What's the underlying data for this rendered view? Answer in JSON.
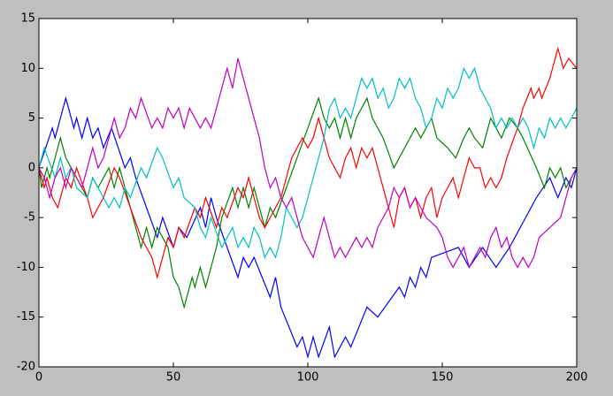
{
  "chart_data": {
    "type": "line",
    "xlim": [
      0,
      200
    ],
    "xticks": [
      0,
      50,
      100,
      150,
      200
    ],
    "ylim": [
      -20,
      15
    ],
    "yticks": [
      -20,
      -15,
      -10,
      -5,
      0,
      5,
      10,
      15
    ],
    "series": [
      {
        "color": "#0000ff",
        "x": [
          0,
          5,
          6,
          10,
          13,
          14,
          16,
          18,
          20,
          22,
          24,
          27,
          32,
          34,
          36,
          44,
          46,
          50,
          52,
          55,
          60,
          62,
          64,
          66,
          74,
          76,
          78,
          80,
          86,
          88,
          90,
          96,
          98,
          100,
          102,
          104,
          108,
          110,
          114,
          116,
          122,
          126,
          134,
          136,
          138,
          140,
          142,
          144,
          146,
          156,
          160,
          165,
          170,
          175,
          185,
          190,
          193,
          196,
          198,
          200
        ],
        "values": [
          0,
          4,
          3,
          7,
          4,
          5,
          3,
          5,
          3,
          4,
          2,
          4,
          0,
          1,
          -1,
          -7,
          -5,
          -8,
          -6,
          -7,
          -4,
          -6,
          -3,
          -5,
          -11,
          -9,
          -10,
          -9,
          -13,
          -11,
          -14,
          -18,
          -17,
          -19,
          -17,
          -19,
          -16,
          -19,
          -17,
          -18,
          -14,
          -15,
          -12,
          -13,
          -11,
          -12,
          -10,
          -11,
          -9,
          -8,
          -10,
          -8,
          -10,
          -8,
          -3,
          -1,
          -3,
          -1,
          -2,
          0
        ]
      },
      {
        "color": "#008000",
        "x": [
          0,
          1,
          3,
          4,
          8,
          10,
          14,
          18,
          20,
          22,
          26,
          28,
          30,
          32,
          36,
          38,
          40,
          42,
          44,
          48,
          50,
          52,
          54,
          57,
          58,
          60,
          62,
          66,
          68,
          72,
          74,
          76,
          78,
          80,
          82,
          84,
          86,
          88,
          92,
          96,
          100,
          104,
          106,
          108,
          110,
          112,
          114,
          116,
          118,
          122,
          124,
          128,
          132,
          134,
          138,
          140,
          142,
          146,
          148,
          152,
          155,
          158,
          160,
          162,
          165,
          168,
          172,
          175,
          178,
          180,
          185,
          188,
          190,
          192,
          194,
          196,
          200
        ],
        "values": [
          0,
          -2,
          0,
          -1,
          3,
          1,
          -1,
          -3,
          -1,
          -2,
          0,
          -2,
          0,
          -2,
          -6,
          -8,
          -6,
          -8,
          -6,
          -8,
          -11,
          -12,
          -14,
          -11,
          -12,
          -10,
          -12,
          -8,
          -5,
          -2,
          -4,
          -2,
          -4,
          -2,
          -4,
          -6,
          -4,
          -5,
          -2,
          1,
          4,
          7,
          5,
          4,
          5,
          3,
          5,
          3,
          5,
          7,
          5,
          3,
          0,
          1,
          3,
          4,
          3,
          5,
          3,
          2,
          1,
          3,
          4,
          3,
          2,
          5,
          3,
          5,
          4,
          3,
          0,
          -2,
          0,
          -1,
          0,
          -2,
          0
        ]
      },
      {
        "color": "#ff0000",
        "x": [
          0,
          2,
          3,
          5,
          7,
          10,
          12,
          14,
          18,
          20,
          22,
          24,
          28,
          30,
          34,
          38,
          42,
          44,
          48,
          50,
          52,
          54,
          58,
          60,
          62,
          66,
          68,
          70,
          74,
          76,
          78,
          80,
          82,
          84,
          88,
          90,
          92,
          94,
          96,
          98,
          100,
          102,
          104,
          106,
          108,
          110,
          112,
          114,
          116,
          118,
          120,
          122,
          124,
          126,
          128,
          130,
          132,
          134,
          136,
          138,
          140,
          142,
          144,
          146,
          148,
          150,
          152,
          154,
          156,
          158,
          160,
          162,
          164,
          166,
          168,
          170,
          172,
          174,
          178,
          180,
          183,
          184,
          186,
          187,
          190,
          193,
          195,
          197,
          200
        ],
        "values": [
          0,
          -2,
          -1,
          -3,
          -4,
          -1,
          -2,
          0,
          -3,
          -5,
          -4,
          -3,
          0,
          -1,
          -4,
          -7,
          -9,
          -11,
          -7,
          -8,
          -6,
          -7,
          -4,
          -5,
          -3,
          -6,
          -4,
          -5,
          -2,
          -3,
          -1,
          -3,
          -5,
          -6,
          -4,
          -3,
          -1,
          1,
          2,
          3,
          2,
          3,
          5,
          3,
          1,
          0,
          -1,
          1,
          2,
          0,
          2,
          1,
          2,
          0,
          -2,
          -4,
          -6,
          -3,
          -2,
          -4,
          -3,
          -5,
          -3,
          -2,
          -5,
          -3,
          -2,
          -1,
          -3,
          -1,
          1,
          0,
          0,
          -2,
          -1,
          -2,
          -1,
          1,
          4,
          6,
          8,
          7,
          8,
          7,
          9,
          12,
          10,
          11,
          10
        ]
      },
      {
        "color": "#00bfbf",
        "x": [
          0,
          2,
          6,
          8,
          10,
          12,
          14,
          18,
          20,
          22,
          26,
          28,
          30,
          32,
          34,
          38,
          40,
          44,
          46,
          50,
          52,
          54,
          58,
          60,
          62,
          64,
          68,
          70,
          72,
          74,
          76,
          78,
          80,
          82,
          84,
          86,
          88,
          90,
          92,
          96,
          98,
          100,
          104,
          106,
          108,
          110,
          112,
          114,
          116,
          118,
          120,
          122,
          124,
          126,
          128,
          130,
          132,
          134,
          136,
          138,
          140,
          142,
          144,
          146,
          148,
          150,
          152,
          154,
          156,
          158,
          160,
          162,
          164,
          168,
          170,
          172,
          174,
          176,
          178,
          180,
          182,
          184,
          186,
          188,
          190,
          192,
          194,
          196,
          200
        ],
        "values": [
          0,
          2,
          -1,
          1,
          -1,
          0,
          -2,
          -3,
          -1,
          -2,
          -4,
          -3,
          -4,
          -2,
          -3,
          0,
          -1,
          2,
          1,
          -2,
          -1,
          -3,
          -4,
          -6,
          -7,
          -5,
          -8,
          -7,
          -6,
          -8,
          -7,
          -8,
          -6,
          -7,
          -9,
          -8,
          -9,
          -7,
          -4,
          -6,
          -5,
          -3,
          1,
          3,
          6,
          7,
          5,
          6,
          5,
          7,
          9,
          8,
          9,
          7,
          8,
          6,
          7,
          9,
          8,
          9,
          7,
          6,
          4,
          5,
          7,
          6,
          8,
          7,
          8,
          10,
          9,
          10,
          8,
          6,
          4,
          5,
          4,
          5,
          4,
          5,
          4,
          2,
          4,
          3,
          5,
          4,
          5,
          4,
          6
        ]
      },
      {
        "color": "#bf00bf",
        "x": [
          0,
          2,
          4,
          6,
          8,
          10,
          12,
          14,
          16,
          20,
          22,
          24,
          26,
          28,
          30,
          32,
          34,
          36,
          38,
          42,
          44,
          46,
          48,
          50,
          52,
          54,
          56,
          58,
          60,
          62,
          64,
          66,
          70,
          72,
          74,
          76,
          78,
          80,
          82,
          84,
          86,
          88,
          90,
          92,
          94,
          96,
          98,
          102,
          104,
          106,
          108,
          110,
          112,
          114,
          116,
          118,
          120,
          122,
          124,
          126,
          130,
          132,
          134,
          136,
          138,
          140,
          142,
          144,
          148,
          150,
          152,
          154,
          156,
          158,
          160,
          162,
          164,
          166,
          168,
          170,
          172,
          174,
          176,
          178,
          180,
          182,
          184,
          186,
          190,
          194,
          196,
          198,
          200
        ],
        "values": [
          0,
          -1,
          -3,
          -1,
          0,
          -2,
          0,
          -1,
          -2,
          2,
          0,
          1,
          3,
          5,
          3,
          4,
          6,
          5,
          7,
          4,
          5,
          4,
          6,
          5,
          6,
          4,
          6,
          5,
          4,
          5,
          4,
          6,
          10,
          8,
          11,
          9,
          7,
          5,
          3,
          0,
          -2,
          -1,
          -3,
          -4,
          -3,
          -5,
          -7,
          -9,
          -7,
          -5,
          -7,
          -9,
          -8,
          -9,
          -8,
          -7,
          -8,
          -7,
          -8,
          -6,
          -4,
          -2,
          -3,
          -2,
          -4,
          -3,
          -4,
          -5,
          -6,
          -7,
          -9,
          -10,
          -9,
          -8,
          -10,
          -9,
          -8,
          -9,
          -7,
          -6,
          -8,
          -7,
          -9,
          -10,
          -9,
          -10,
          -9,
          -7,
          -6,
          -5,
          -3,
          -1,
          0
        ]
      }
    ]
  }
}
